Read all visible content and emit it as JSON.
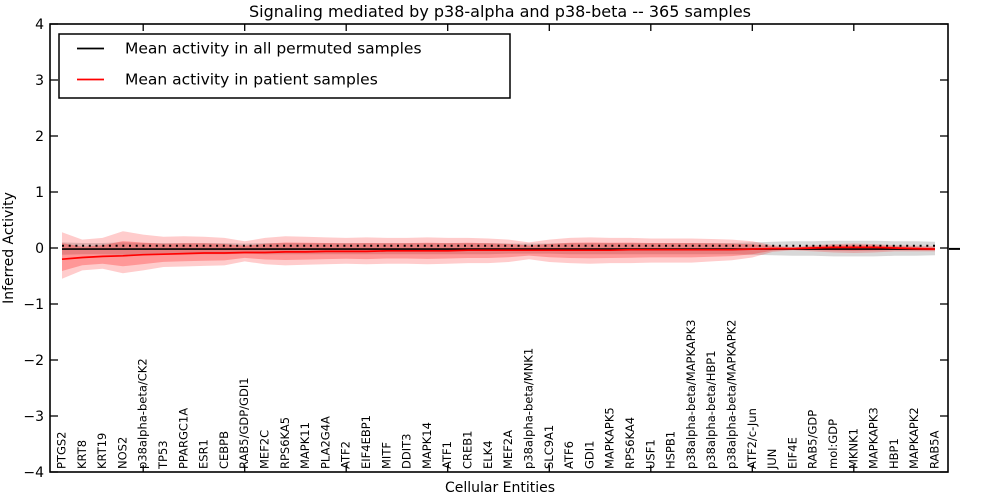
{
  "chart_data": {
    "type": "line",
    "title": "Signaling mediated by p38-alpha and p38-beta -- 365 samples",
    "xlabel": "Cellular Entities",
    "ylabel": "Inferred Activity",
    "ylim": [
      -4,
      4
    ],
    "y_ticks": [
      4,
      3,
      2,
      1,
      0,
      -1,
      -2,
      -3,
      -4
    ],
    "x_major_tick_every": 5,
    "grid": false,
    "legend_position": "upper left",
    "dotted_reference_y": 0.04,
    "zero_marker_right_outside": true,
    "categories": [
      "PTGS2",
      "KRT8",
      "KRT19",
      "NOS2",
      "p38alpha-beta/CK2",
      "TP53",
      "PPARGC1A",
      "ESR1",
      "CEBPB",
      "RAB5/GDP/GDI1",
      "MEF2C",
      "RPS6KA5",
      "MAPK11",
      "PLA2G4A",
      "ATF2",
      "EIF4EBP1",
      "MITF",
      "DDIT3",
      "MAPK14",
      "ATF1",
      "CREB1",
      "ELK4",
      "MEF2A",
      "p38alpha-beta/MNK1",
      "SLC9A1",
      "ATF6",
      "GDI1",
      "MAPKAPK5",
      "RPS6KA4",
      "USF1",
      "HSPB1",
      "p38alpha-beta/MAPKAPK3",
      "p38alpha-beta/HBP1",
      "p38alpha-beta/MAPKAPK2",
      "ATF2/c-Jun",
      "JUN",
      "EIF4E",
      "RAB5/GDP",
      "mol:GDP",
      "MKNK1",
      "MAPKAPK3",
      "HBP1",
      "MAPKAPK2",
      "RAB5A"
    ],
    "series": [
      {
        "name": "Mean activity in all permuted samples",
        "color": "#000000",
        "band_color": "rgba(125,125,125,0.30)",
        "values": [
          -0.02,
          -0.02,
          -0.02,
          -0.02,
          -0.02,
          -0.02,
          -0.02,
          -0.02,
          -0.02,
          -0.02,
          -0.02,
          -0.02,
          -0.02,
          -0.02,
          -0.02,
          -0.02,
          -0.02,
          -0.02,
          -0.02,
          -0.02,
          -0.02,
          -0.02,
          -0.02,
          -0.02,
          -0.02,
          -0.02,
          -0.02,
          -0.02,
          -0.02,
          -0.02,
          -0.02,
          -0.02,
          -0.02,
          -0.02,
          -0.02,
          -0.02,
          -0.02,
          -0.02,
          -0.02,
          -0.02,
          -0.02,
          -0.02,
          -0.02,
          -0.02
        ],
        "band_upper": [
          0.1,
          0.09,
          0.09,
          0.1,
          0.09,
          0.09,
          0.09,
          0.09,
          0.09,
          0.08,
          0.09,
          0.09,
          0.09,
          0.09,
          0.09,
          0.09,
          0.09,
          0.09,
          0.09,
          0.09,
          0.09,
          0.09,
          0.08,
          0.08,
          0.08,
          0.09,
          0.09,
          0.09,
          0.09,
          0.09,
          0.09,
          0.09,
          0.09,
          0.09,
          0.1,
          0.11,
          0.12,
          0.12,
          0.13,
          0.13,
          0.13,
          0.12,
          0.12,
          0.11
        ],
        "band_lower": [
          -0.12,
          -0.11,
          -0.11,
          -0.12,
          -0.11,
          -0.11,
          -0.11,
          -0.11,
          -0.11,
          -0.1,
          -0.11,
          -0.11,
          -0.11,
          -0.11,
          -0.11,
          -0.11,
          -0.11,
          -0.11,
          -0.11,
          -0.11,
          -0.11,
          -0.11,
          -0.1,
          -0.1,
          -0.1,
          -0.11,
          -0.11,
          -0.11,
          -0.11,
          -0.11,
          -0.11,
          -0.11,
          -0.11,
          -0.11,
          -0.12,
          -0.13,
          -0.14,
          -0.14,
          -0.15,
          -0.15,
          -0.15,
          -0.14,
          -0.14,
          -0.13
        ]
      },
      {
        "name": "Mean activity in patient samples",
        "color": "#ff0000",
        "band_color": "rgba(255,0,0,0.20)",
        "inner_band_color": "rgba(255,0,0,0.26)",
        "inner_band_factor": 0.6,
        "values": [
          -0.2,
          -0.17,
          -0.15,
          -0.14,
          -0.12,
          -0.11,
          -0.1,
          -0.09,
          -0.09,
          -0.08,
          -0.08,
          -0.07,
          -0.07,
          -0.06,
          -0.06,
          -0.06,
          -0.05,
          -0.05,
          -0.05,
          -0.05,
          -0.04,
          -0.04,
          -0.04,
          -0.04,
          -0.04,
          -0.04,
          -0.04,
          -0.04,
          -0.03,
          -0.03,
          -0.03,
          -0.03,
          -0.03,
          -0.03,
          -0.02,
          -0.01,
          -0.01,
          0.0,
          0.01,
          0.01,
          0.01,
          0.0,
          -0.01,
          -0.02
        ],
        "band_upper": [
          0.28,
          0.15,
          0.18,
          0.3,
          0.24,
          0.2,
          0.21,
          0.2,
          0.18,
          0.12,
          0.18,
          0.21,
          0.2,
          0.19,
          0.18,
          0.19,
          0.18,
          0.18,
          0.19,
          0.18,
          0.18,
          0.17,
          0.15,
          0.1,
          0.15,
          0.18,
          0.19,
          0.18,
          0.18,
          0.17,
          0.17,
          0.17,
          0.16,
          0.15,
          0.12,
          0.05,
          0.02,
          0.05,
          0.07,
          0.08,
          0.07,
          0.05,
          0.04,
          0.03
        ],
        "band_lower": [
          -0.55,
          -0.4,
          -0.37,
          -0.45,
          -0.4,
          -0.34,
          -0.33,
          -0.32,
          -0.31,
          -0.24,
          -0.29,
          -0.31,
          -0.3,
          -0.29,
          -0.28,
          -0.29,
          -0.28,
          -0.28,
          -0.29,
          -0.28,
          -0.27,
          -0.27,
          -0.25,
          -0.2,
          -0.25,
          -0.27,
          -0.28,
          -0.27,
          -0.27,
          -0.26,
          -0.26,
          -0.26,
          -0.24,
          -0.22,
          -0.17,
          -0.07,
          -0.04,
          -0.06,
          -0.08,
          -0.09,
          -0.08,
          -0.06,
          -0.06,
          -0.06
        ]
      }
    ]
  }
}
